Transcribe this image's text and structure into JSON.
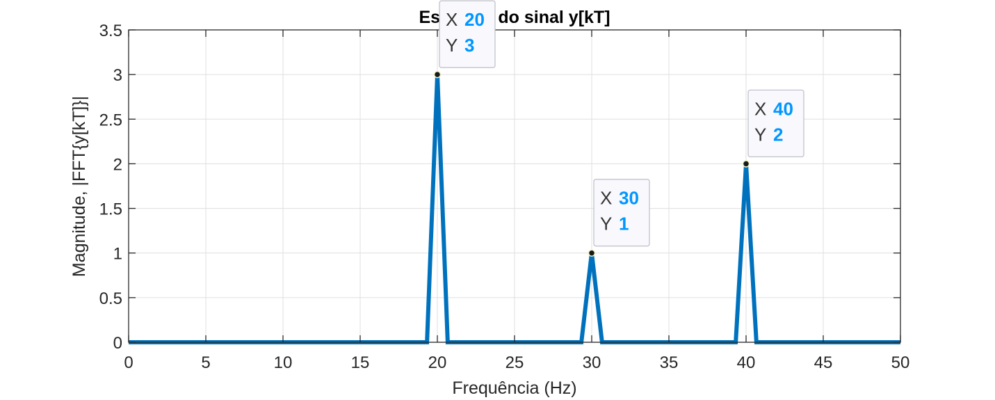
{
  "chart_data": {
    "type": "line",
    "title": "Espectro do sinal y[kT]",
    "xlabel": "Frequência (Hz)",
    "ylabel": "Magnitude, |FFT{y[kT]}|",
    "xlim": [
      0,
      50
    ],
    "ylim": [
      0,
      3.5
    ],
    "grid": true,
    "x_ticks": [
      "0",
      "5",
      "10",
      "15",
      "20",
      "25",
      "30",
      "35",
      "40",
      "45",
      "50"
    ],
    "y_ticks": [
      "0",
      "0.5",
      "1",
      "1.5",
      "2",
      "2.5",
      "3",
      "3.5"
    ],
    "series": [
      {
        "x": [
          0,
          19.33,
          20,
          20.67,
          29.33,
          30,
          30.67,
          39.33,
          40,
          40.67,
          50
        ],
        "y": [
          0,
          0,
          3,
          0,
          0,
          1,
          0,
          0,
          2,
          0,
          0
        ]
      }
    ],
    "datatips": [
      {
        "x_key": "X",
        "x_val": "20",
        "y_key": "Y",
        "y_val": "3",
        "x": 20,
        "y": 3
      },
      {
        "x_key": "X",
        "x_val": "30",
        "y_key": "Y",
        "y_val": "1",
        "x": 30,
        "y": 1
      },
      {
        "x_key": "X",
        "x_val": "40",
        "y_key": "Y",
        "y_val": "2",
        "x": 40,
        "y": 2
      }
    ]
  },
  "colors": {
    "line": "#0072BD",
    "datatip_value": "#0096FF",
    "grid": "#DFDFDF",
    "axes": "#262626",
    "datatip_bg": "#F8F8FD",
    "datatip_border": "#BDBDC8"
  }
}
